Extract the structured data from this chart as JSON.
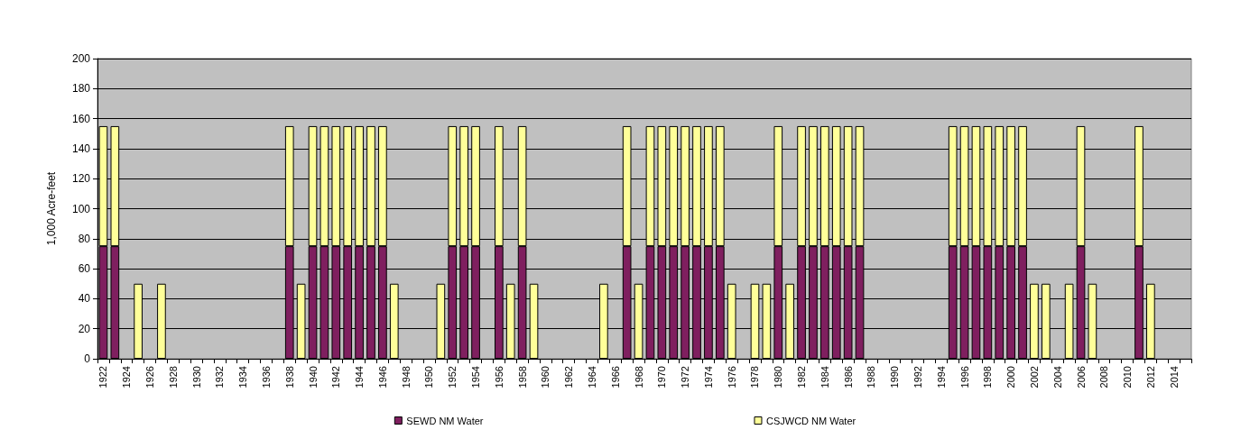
{
  "chart_data": {
    "type": "bar",
    "stacked": true,
    "ylabel": "1,000 Acre-feet",
    "ylim": [
      0,
      200
    ],
    "yticks": [
      0,
      20,
      40,
      60,
      80,
      100,
      120,
      140,
      160,
      180,
      200
    ],
    "grid": "y",
    "legend": "bottom",
    "categories": [
      "1922",
      null,
      "1924",
      null,
      "1926",
      null,
      "1928",
      null,
      "1930",
      null,
      "1932",
      null,
      "1934",
      null,
      "1936",
      null,
      "1938",
      null,
      "1940",
      null,
      "1942",
      null,
      "1944",
      null,
      "1946",
      null,
      "1948",
      null,
      "1950",
      null,
      "1952",
      null,
      "1954",
      null,
      "1956",
      null,
      "1958",
      null,
      "1960",
      null,
      "1962",
      null,
      "1964",
      null,
      "1966",
      null,
      "1968",
      null,
      "1970",
      null,
      "1972",
      null,
      "1974",
      null,
      "1976",
      null,
      "1978",
      null,
      "1980",
      null,
      "1982",
      null,
      "1984",
      null,
      "1986",
      null,
      "1988",
      null,
      "1990",
      null,
      "1992",
      null,
      "1994",
      null,
      "1996",
      null,
      "1998",
      null,
      "2000",
      null,
      "2002",
      null,
      "2004",
      null,
      "2006",
      null,
      "2008",
      null,
      "2010",
      null,
      "2012",
      null,
      "2014",
      null
    ],
    "series": [
      {
        "name": "SEWD NM Water",
        "color": "#7f1f5f",
        "values": [
          75,
          75,
          null,
          null,
          null,
          null,
          null,
          null,
          null,
          null,
          null,
          null,
          null,
          null,
          null,
          null,
          75,
          null,
          75,
          75,
          75,
          75,
          75,
          75,
          75,
          null,
          null,
          null,
          null,
          null,
          75,
          75,
          75,
          null,
          75,
          null,
          75,
          null,
          null,
          null,
          null,
          null,
          null,
          null,
          null,
          75,
          null,
          75,
          75,
          75,
          75,
          75,
          75,
          75,
          null,
          null,
          null,
          null,
          75,
          null,
          75,
          75,
          75,
          75,
          75,
          75,
          null,
          null,
          null,
          null,
          null,
          null,
          null,
          75,
          75,
          75,
          75,
          75,
          75,
          75,
          null,
          null,
          null,
          null,
          75,
          null,
          null,
          null,
          null,
          75,
          null,
          null,
          null,
          null
        ]
      },
      {
        "name": "CSJWCD NM Water",
        "color": "#ffff99",
        "values": [
          80,
          80,
          null,
          50,
          null,
          50,
          null,
          null,
          null,
          null,
          null,
          null,
          null,
          null,
          null,
          null,
          80,
          50,
          80,
          80,
          80,
          80,
          80,
          80,
          80,
          50,
          null,
          null,
          null,
          50,
          80,
          80,
          80,
          null,
          80,
          50,
          80,
          50,
          null,
          null,
          null,
          null,
          null,
          50,
          null,
          80,
          50,
          80,
          80,
          80,
          80,
          80,
          80,
          80,
          50,
          null,
          50,
          50,
          80,
          50,
          80,
          80,
          80,
          80,
          80,
          80,
          null,
          null,
          null,
          null,
          null,
          null,
          null,
          80,
          80,
          80,
          80,
          80,
          80,
          80,
          50,
          50,
          null,
          50,
          80,
          50,
          null,
          null,
          null,
          80,
          50,
          null,
          null,
          null
        ]
      }
    ]
  }
}
